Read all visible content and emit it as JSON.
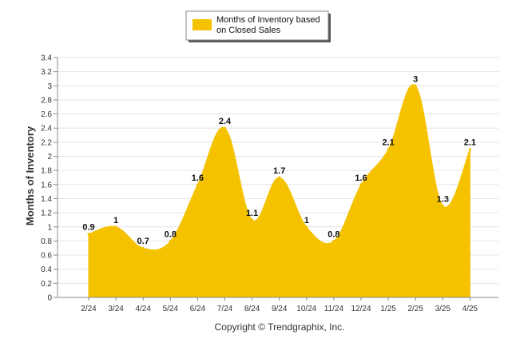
{
  "chart_data": {
    "type": "area",
    "categories": [
      "2/24",
      "3/24",
      "4/24",
      "5/24",
      "6/24",
      "7/24",
      "8/24",
      "9/24",
      "10/24",
      "11/24",
      "12/24",
      "1/25",
      "2/25",
      "3/25",
      "4/25"
    ],
    "series": [
      {
        "name": "Months of Inventory based on Closed Sales",
        "values": [
          0.9,
          1,
          0.7,
          0.8,
          1.6,
          2.4,
          1.1,
          1.7,
          1,
          0.8,
          1.6,
          2.1,
          3,
          1.3,
          2.1
        ],
        "color": "#F5C200"
      }
    ],
    "data_labels": [
      "0.9",
      "1",
      "0.7",
      "0.8",
      "1.6",
      "2.4",
      "1.1",
      "1.7",
      "1",
      "0.8",
      "1.6",
      "2.1",
      "3",
      "1.3",
      "2.1"
    ],
    "ylabel": "Months of Inventory",
    "xlabel": "",
    "ylim": [
      0,
      3.4
    ],
    "y_ticks": [
      "0",
      "0.2",
      "0.4",
      "0.6",
      "0.8",
      "1",
      "1.2",
      "1.4",
      "1.6",
      "1.8",
      "2",
      "2.2",
      "2.4",
      "2.6",
      "2.8",
      "3",
      "3.2",
      "3.4"
    ],
    "grid": true,
    "legend": {
      "position": "top-center",
      "label_line1": "Months of Inventory based",
      "label_line2": "on Closed Sales"
    },
    "credit": "Copyright © Trendgraphix, Inc."
  }
}
